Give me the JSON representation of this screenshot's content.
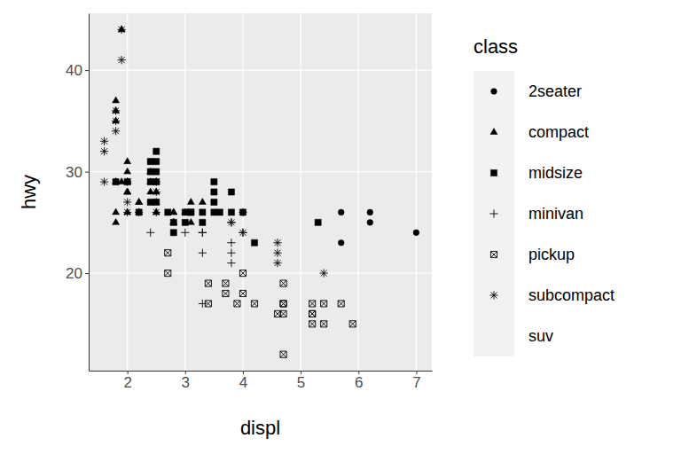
{
  "chart_data": {
    "type": "scatter",
    "x_label": "displ",
    "y_label": "hwy",
    "legend_title": "class",
    "legend": "right",
    "grid": true,
    "xlim": [
      1.33,
      7.27
    ],
    "xticks": [
      2,
      3,
      4,
      5,
      6,
      7
    ],
    "ylim": [
      10.4,
      45.6
    ],
    "yticks": [
      20,
      30,
      40
    ],
    "series": [
      {
        "name": "2seater",
        "marker": "circle",
        "color": "#000000",
        "x": [
          5.7,
          5.7,
          6.2,
          6.2,
          7.0
        ],
        "values": [
          26,
          23,
          26,
          25,
          24
        ]
      },
      {
        "name": "compact",
        "marker": "triangle",
        "color": "#000000",
        "x": [
          1.8,
          1.8,
          2.0,
          2.0,
          2.8,
          2.8,
          3.1,
          1.8,
          1.8,
          2.0,
          2.0,
          2.8,
          2.8,
          3.1,
          2.2,
          2.2,
          2.4,
          2.4,
          3.0,
          3.3,
          1.8,
          1.8,
          1.9,
          1.9,
          2.0,
          2.0,
          2.0,
          2.5,
          2.5,
          2.5,
          2.5,
          2.4,
          2.2,
          1.8,
          2.0
        ],
        "values": [
          29,
          29,
          31,
          30,
          26,
          26,
          27,
          26,
          25,
          28,
          28,
          25,
          25,
          25,
          26,
          27,
          30,
          29,
          26,
          27,
          37,
          35,
          44,
          29,
          26,
          29,
          28,
          28,
          29,
          26,
          27,
          28,
          27,
          36,
          29
        ]
      },
      {
        "name": "midsize",
        "marker": "square",
        "color": "#000000",
        "x": [
          2.4,
          2.4,
          3.1,
          3.5,
          3.6,
          2.5,
          2.5,
          3.3,
          3.3,
          3.8,
          3.8,
          5.3,
          2.4,
          2.5,
          2.5,
          3.0,
          3.5,
          3.5,
          2.7,
          2.8,
          3.1,
          4.2,
          4.0,
          3.0,
          1.8,
          2.0,
          2.8,
          3.5,
          2.2,
          2.4,
          2.5
        ],
        "values": [
          27,
          30,
          26,
          29,
          26,
          29,
          30,
          26,
          25,
          26,
          28,
          25,
          31,
          32,
          31,
          26,
          28,
          26,
          26,
          25,
          26,
          23,
          26,
          25,
          29,
          29,
          24,
          27,
          26,
          29,
          27
        ]
      },
      {
        "name": "minivan",
        "marker": "plus",
        "color": "#000000",
        "x": [
          2.4,
          3.0,
          3.3,
          3.3,
          3.3,
          3.3,
          3.8,
          3.8,
          3.8,
          3.8,
          4.0
        ],
        "values": [
          24,
          24,
          24,
          22,
          17,
          24,
          23,
          22,
          21,
          25,
          24
        ]
      },
      {
        "name": "pickup",
        "marker": "square-cross",
        "color": "#000000",
        "x": [
          2.7,
          2.7,
          3.4,
          3.4,
          3.7,
          3.7,
          3.9,
          4.0,
          4.0,
          4.2,
          4.7,
          4.7,
          4.7,
          4.7,
          4.6,
          4.7,
          5.2,
          5.2,
          5.2,
          5.2,
          5.4,
          5.4,
          5.7,
          5.9
        ],
        "values": [
          20,
          22,
          17,
          19,
          18,
          19,
          17,
          20,
          18,
          17,
          16,
          17,
          12,
          19,
          16,
          17,
          17,
          16,
          15,
          16,
          17,
          15,
          17,
          15
        ]
      },
      {
        "name": "subcompact",
        "marker": "asterisk",
        "color": "#000000",
        "x": [
          1.6,
          1.6,
          1.6,
          1.8,
          1.8,
          1.8,
          1.9,
          1.9,
          2.0,
          2.0,
          2.5,
          2.5,
          2.2,
          3.8,
          4.0,
          4.0,
          4.6,
          4.6,
          4.6,
          5.4,
          2.0,
          2.5
        ],
        "values": [
          33,
          32,
          29,
          36,
          34,
          35,
          44,
          41,
          29,
          26,
          28,
          26,
          26,
          25,
          26,
          24,
          23,
          22,
          21,
          20,
          27,
          29
        ]
      },
      {
        "name": "suv",
        "marker": "none",
        "color": "#000000",
        "x": [],
        "values": []
      }
    ]
  }
}
